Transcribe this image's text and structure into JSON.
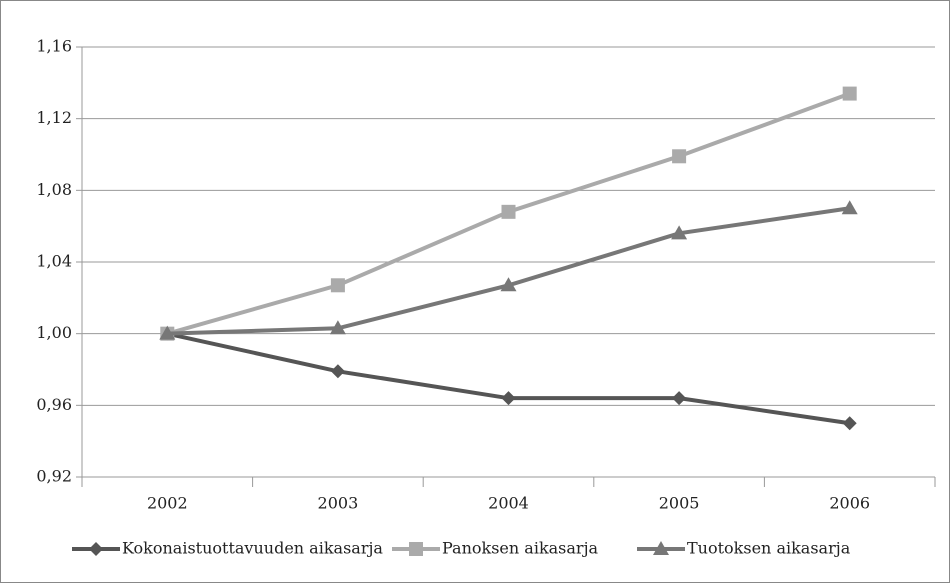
{
  "chart_data": {
    "type": "line",
    "categories": [
      "2002",
      "2003",
      "2004",
      "2005",
      "2006"
    ],
    "series": [
      {
        "name": "Kokonaistuottavuuden aikasarja",
        "color": "#555555",
        "marker": "diamond",
        "values": [
          1.0,
          0.979,
          0.964,
          0.964,
          0.95
        ]
      },
      {
        "name": "Panoksen aikasarja",
        "color": "#aaaaaa",
        "marker": "square",
        "values": [
          1.0,
          1.027,
          1.068,
          1.099,
          1.134
        ]
      },
      {
        "name": "Tuotoksen aikasarja",
        "color": "#777777",
        "marker": "triangle",
        "values": [
          1.0,
          1.003,
          1.027,
          1.056,
          1.07
        ]
      }
    ],
    "ylim": [
      0.92,
      1.16
    ],
    "yticks": [
      {
        "value": 0.92,
        "label": "0,92"
      },
      {
        "value": 0.96,
        "label": "0,96"
      },
      {
        "value": 1.0,
        "label": "1,00"
      },
      {
        "value": 1.04,
        "label": "1,04"
      },
      {
        "value": 1.08,
        "label": "1,08"
      },
      {
        "value": 1.12,
        "label": "1,12"
      },
      {
        "value": 1.16,
        "label": "1,16"
      }
    ],
    "grid": true,
    "legend": "bottom"
  }
}
